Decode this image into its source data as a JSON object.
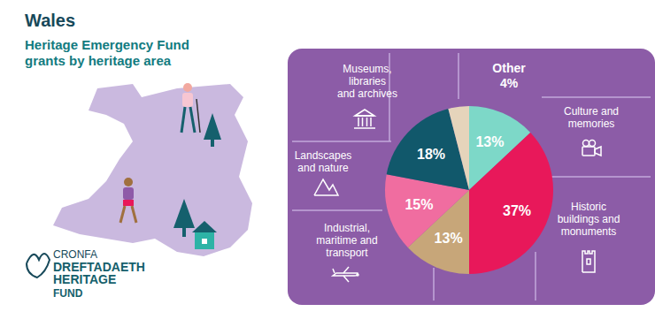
{
  "chart_data": {
    "type": "pie",
    "title": "Wales",
    "subtitle": [
      "Heritage Emergency Fund",
      "grants by heritage area"
    ],
    "categories": [
      "Culture and memories",
      "Historic buildings and monuments",
      "Industrial, maritime and transport",
      "Landscapes and nature",
      "Museums, libraries and archives",
      "Other"
    ],
    "values": [
      13,
      37,
      13,
      15,
      18,
      4
    ],
    "value_labels": [
      "13%",
      "37%",
      "13%",
      "15%",
      "18%",
      "4%"
    ],
    "colors": [
      "#7dd8c8",
      "#e8185a",
      "#c7a679",
      "#f06da0",
      "#11586b",
      "#e5d4bb"
    ],
    "data_labels": true
  },
  "logo": [
    "CRONFA",
    "DREFTADAETH",
    "HERITAGE",
    "FUND"
  ]
}
